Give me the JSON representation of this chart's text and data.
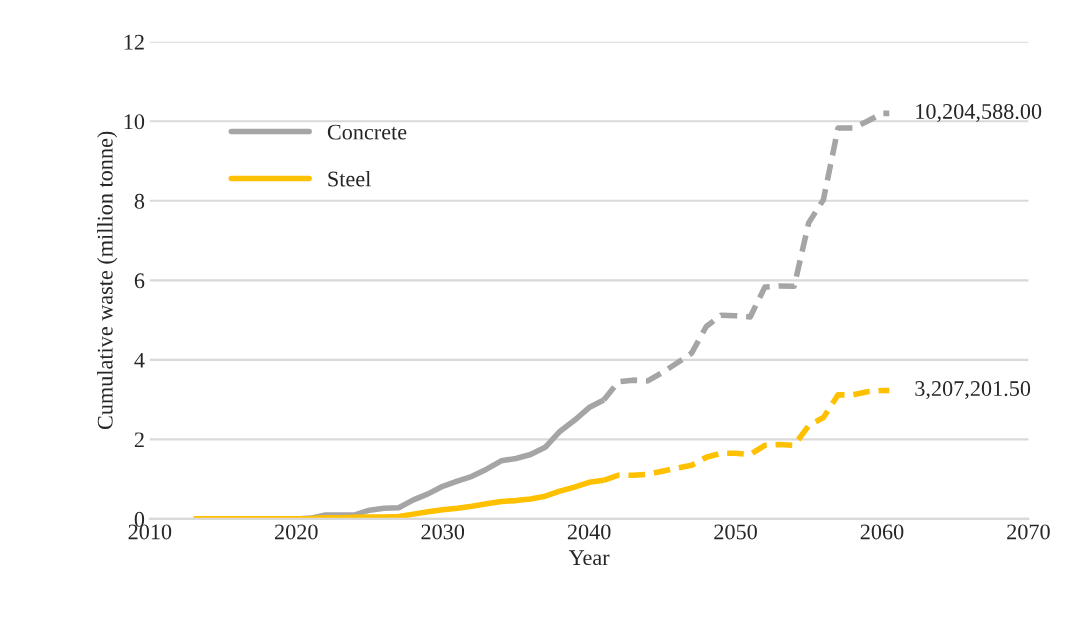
{
  "chart_data": {
    "type": "line",
    "xlabel": "Year",
    "ylabel": "Cumulative waste (million tonne)",
    "xlim": [
      2010,
      2070
    ],
    "xticks": [
      2010,
      2020,
      2030,
      2040,
      2050,
      2060,
      2070
    ],
    "ylim": [
      0,
      12
    ],
    "yticks": [
      0,
      2,
      4,
      6,
      8,
      10,
      12
    ],
    "grid": "y",
    "legend": "top left",
    "marker": "none",
    "series": [
      {
        "name": "Concrete",
        "color": "#a5a5a5",
        "line_style": "solid",
        "x": [
          2013,
          2014,
          2015,
          2016,
          2017,
          2018,
          2019,
          2020,
          2021,
          2022,
          2023,
          2024,
          2025,
          2026,
          2027,
          2028,
          2029,
          2030,
          2031,
          2032,
          2033,
          2034,
          2035,
          2036,
          2037,
          2038,
          2039,
          2040,
          2041
        ],
        "values": [
          0,
          0,
          0,
          0,
          0,
          0,
          0,
          0,
          0.02,
          0.1,
          0.1,
          0.1,
          0.22,
          0.27,
          0.28,
          0.48,
          0.63,
          0.82,
          0.95,
          1.07,
          1.25,
          1.46,
          1.52,
          1.62,
          1.8,
          2.2,
          2.48,
          2.8,
          2.99
        ]
      },
      {
        "color": "#a5a5a5",
        "line_style": "dashed",
        "x": [
          2041,
          2042,
          2043,
          2044,
          2045,
          2046,
          2047,
          2048,
          2049,
          2050,
          2051,
          2052,
          2053,
          2054,
          2055,
          2056,
          2057,
          2058,
          2059,
          2060,
          2060.5
        ],
        "values": [
          2.99,
          3.45,
          3.49,
          3.47,
          3.68,
          3.92,
          4.17,
          4.84,
          5.12,
          5.11,
          5.08,
          5.83,
          5.86,
          5.85,
          7.45,
          8.03,
          9.83,
          9.83,
          10.0,
          10.2,
          10.2
        ]
      },
      {
        "name": "Steel",
        "color": "#ffc000",
        "line_style": "solid",
        "x": [
          2013,
          2014,
          2015,
          2016,
          2017,
          2018,
          2019,
          2020,
          2021,
          2022,
          2023,
          2024,
          2025,
          2026,
          2027,
          2028,
          2029,
          2030,
          2031,
          2032,
          2033,
          2034,
          2035,
          2036,
          2037,
          2038,
          2039,
          2040,
          2041
        ],
        "values": [
          0,
          0,
          0,
          0,
          0,
          0,
          0,
          0,
          0.01,
          0.03,
          0.03,
          0.04,
          0.05,
          0.05,
          0.06,
          0.12,
          0.18,
          0.23,
          0.27,
          0.32,
          0.38,
          0.44,
          0.46,
          0.5,
          0.57,
          0.7,
          0.8,
          0.92,
          0.97
        ]
      },
      {
        "color": "#ffc000",
        "line_style": "dashed",
        "x": [
          2041,
          2042,
          2043,
          2044,
          2045,
          2046,
          2047,
          2048,
          2049,
          2050,
          2051,
          2052,
          2053,
          2054,
          2055,
          2056,
          2057,
          2058,
          2059,
          2060,
          2060.5
        ],
        "values": [
          0.97,
          1.1,
          1.1,
          1.12,
          1.2,
          1.28,
          1.35,
          1.55,
          1.65,
          1.65,
          1.62,
          1.85,
          1.87,
          1.85,
          2.35,
          2.55,
          3.12,
          3.12,
          3.2,
          3.23,
          3.23
        ]
      }
    ],
    "annotations": [
      {
        "text": "10,204,588.00",
        "x": 2060.5,
        "y": 10.2
      },
      {
        "text": "3,207,201.50",
        "x": 2060.5,
        "y": 3.23
      }
    ]
  }
}
